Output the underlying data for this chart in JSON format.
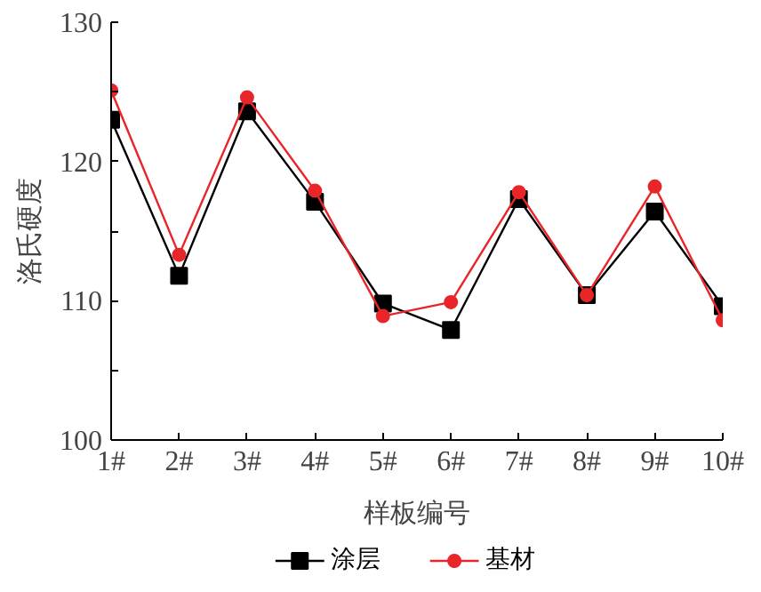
{
  "chart_data": {
    "type": "line",
    "xlabel": "样板编号",
    "ylabel": "洛氏硬度",
    "categories": [
      "1#",
      "2#",
      "3#",
      "4#",
      "5#",
      "6#",
      "7#",
      "8#",
      "9#",
      "10#"
    ],
    "ylim": [
      100,
      130
    ],
    "yticks": [
      100,
      {
        "value": 105,
        "label": null
      },
      110,
      {
        "value": 115,
        "label": null
      },
      120,
      {
        "value": 125,
        "label": null
      },
      130
    ],
    "grid": false,
    "legend": "bottom",
    "line_style": "solid",
    "series": [
      {
        "name": "涂层",
        "color": "#000000",
        "marker": "square",
        "values": [
          123.0,
          111.8,
          123.6,
          117.1,
          109.8,
          107.9,
          117.3,
          110.4,
          116.4,
          109.6
        ]
      },
      {
        "name": "基材",
        "color": "#e8262a",
        "marker": "circle",
        "values": [
          125.1,
          113.3,
          124.6,
          117.9,
          108.9,
          109.9,
          117.8,
          110.4,
          118.2,
          108.6
        ]
      }
    ]
  }
}
